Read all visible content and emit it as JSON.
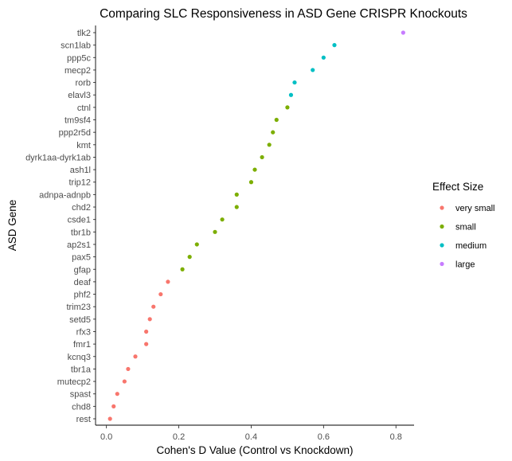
{
  "chart_data": {
    "type": "scatter",
    "title": "Comparing SLC Responsiveness in ASD Gene CRISPR Knockouts",
    "xlabel": "Cohen's D Value (Control vs Knockdown)",
    "ylabel": "ASD Gene",
    "xlim": [
      -0.03,
      0.85
    ],
    "xticks": [
      0.0,
      0.2,
      0.4,
      0.6,
      0.8
    ],
    "xtick_labels": [
      "0.0",
      "0.2",
      "0.4",
      "0.6",
      "0.8"
    ],
    "grid": false,
    "legend": {
      "title": "Effect Size",
      "position": "right",
      "entries": [
        {
          "label": "very small",
          "color": "#F8766D"
        },
        {
          "label": "small",
          "color": "#7CAE00"
        },
        {
          "label": "medium",
          "color": "#00BFC4"
        },
        {
          "label": "large",
          "color": "#C77CFF"
        }
      ]
    },
    "points": [
      {
        "gene": "tlk2",
        "x": 0.82,
        "size": "large"
      },
      {
        "gene": "scn1lab",
        "x": 0.63,
        "size": "medium"
      },
      {
        "gene": "ppp5c",
        "x": 0.6,
        "size": "medium"
      },
      {
        "gene": "mecp2",
        "x": 0.57,
        "size": "medium"
      },
      {
        "gene": "rorb",
        "x": 0.52,
        "size": "medium"
      },
      {
        "gene": "elavl3",
        "x": 0.51,
        "size": "medium"
      },
      {
        "gene": "ctnl",
        "x": 0.5,
        "size": "small"
      },
      {
        "gene": "tm9sf4",
        "x": 0.47,
        "size": "small"
      },
      {
        "gene": "ppp2r5d",
        "x": 0.46,
        "size": "small"
      },
      {
        "gene": "kmt",
        "x": 0.45,
        "size": "small"
      },
      {
        "gene": "dyrk1aa-dyrk1ab",
        "x": 0.43,
        "size": "small"
      },
      {
        "gene": "ash1l",
        "x": 0.41,
        "size": "small"
      },
      {
        "gene": "trip12",
        "x": 0.4,
        "size": "small"
      },
      {
        "gene": "adnpa-adnpb",
        "x": 0.36,
        "size": "small"
      },
      {
        "gene": "chd2",
        "x": 0.36,
        "size": "small"
      },
      {
        "gene": "csde1",
        "x": 0.32,
        "size": "small"
      },
      {
        "gene": "tbr1b",
        "x": 0.3,
        "size": "small"
      },
      {
        "gene": "ap2s1",
        "x": 0.25,
        "size": "small"
      },
      {
        "gene": "pax5",
        "x": 0.23,
        "size": "small"
      },
      {
        "gene": "gfap",
        "x": 0.21,
        "size": "small"
      },
      {
        "gene": "deaf",
        "x": 0.17,
        "size": "very small"
      },
      {
        "gene": "phf2",
        "x": 0.15,
        "size": "very small"
      },
      {
        "gene": "trim23",
        "x": 0.13,
        "size": "very small"
      },
      {
        "gene": "setd5",
        "x": 0.12,
        "size": "very small"
      },
      {
        "gene": "rfx3",
        "x": 0.11,
        "size": "very small"
      },
      {
        "gene": "fmr1",
        "x": 0.11,
        "size": "very small"
      },
      {
        "gene": "kcnq3",
        "x": 0.08,
        "size": "very small"
      },
      {
        "gene": "tbr1a",
        "x": 0.06,
        "size": "very small"
      },
      {
        "gene": "mutecp2",
        "x": 0.05,
        "size": "very small"
      },
      {
        "gene": "spast",
        "x": 0.03,
        "size": "very small"
      },
      {
        "gene": "chd8",
        "x": 0.02,
        "size": "very small"
      },
      {
        "gene": "rest",
        "x": 0.01,
        "size": "very small"
      }
    ]
  }
}
